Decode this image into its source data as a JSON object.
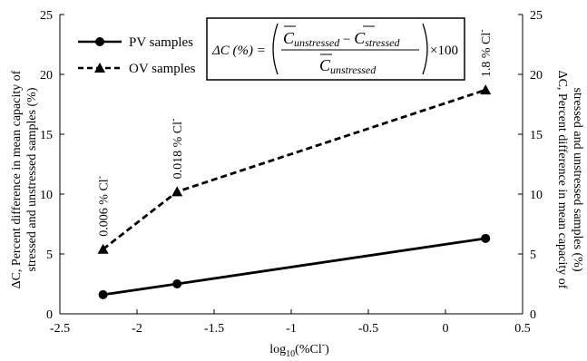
{
  "chart_data": {
    "type": "line",
    "xlabel_main": "log",
    "xlabel_sub": "10",
    "xlabel_rest": "(%Cl",
    "xlabel_sup": "-",
    "xlabel_end": ")",
    "ylabel_left": [
      "ΔC, Percent difference in mean capacity of",
      "stressed and unstressed samples (%)"
    ],
    "ylabel_right": [
      "ΔC, Percent difference in mean capacity of",
      "stressed and unstressed samples (%)"
    ],
    "xlim": [
      -2.5,
      0.5
    ],
    "ylim": [
      0,
      25
    ],
    "xticks": [
      "-2.5",
      "-2",
      "-1.5",
      "-1",
      "-0.5",
      "0",
      "0.5"
    ],
    "xtick_values": [
      -2.5,
      -2,
      -1.5,
      -1,
      -0.5,
      0,
      0.5
    ],
    "yticks": [
      "0",
      "5",
      "10",
      "15",
      "20",
      "25"
    ],
    "ytick_values": [
      0,
      5,
      10,
      15,
      20,
      25
    ],
    "grid": false,
    "legend_placement": "top-left",
    "series": [
      {
        "name": "PV samples",
        "marker": "circle",
        "dash": "solid",
        "x": [
          -2.22,
          -1.74,
          0.26
        ],
        "y": [
          1.6,
          2.5,
          6.3
        ]
      },
      {
        "name": "OV samples",
        "marker": "triangle",
        "dash": "dashed",
        "x": [
          -2.22,
          -1.74,
          0.26
        ],
        "y": [
          5.4,
          10.2,
          18.7
        ]
      }
    ],
    "annotations": [
      {
        "text": "0.006 % Cl",
        "sup": "-",
        "x": -2.22,
        "y": 5.4
      },
      {
        "text": "0.018 % Cl",
        "sup": "-",
        "x": -1.74,
        "y": 10.2
      },
      {
        "text": "1.8 % Cl",
        "sup": "-",
        "x": 0.26,
        "y": 18.7
      }
    ],
    "formula": {
      "lhs": "ΔC (%) = ",
      "numerator_a": "C",
      "numerator_a_sub": "unstressed",
      "minus": " − ",
      "numerator_b": "C",
      "numerator_b_sub": "stressed",
      "denominator": "C",
      "denominator_sub": "unstressed",
      "times": "×100"
    }
  }
}
